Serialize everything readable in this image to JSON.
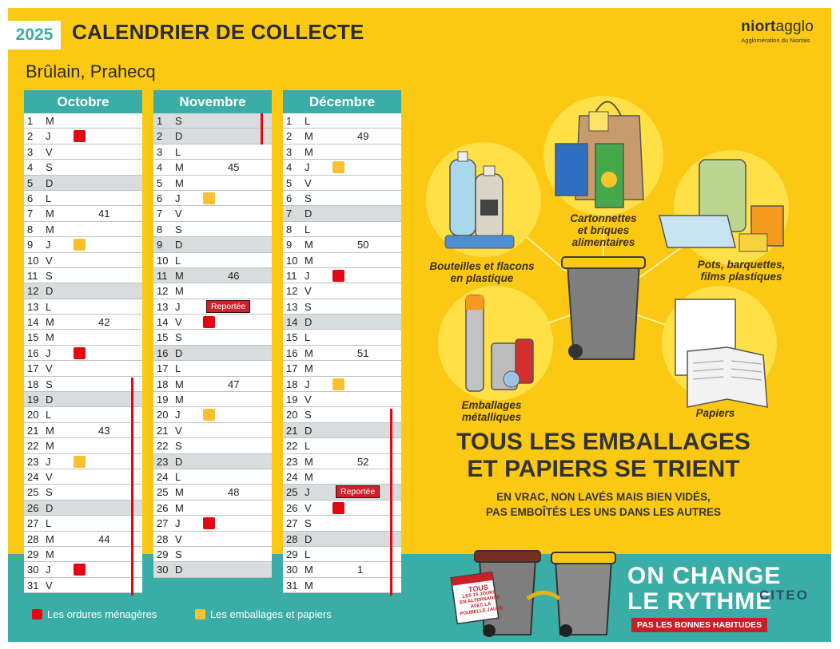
{
  "header": {
    "year": "2025",
    "title": "CALENDRIER DE COLLECTE",
    "place": "Brûlain, Prahecq",
    "brand_name": "niort",
    "brand_name_2": "agglo",
    "brand_sub": "Agglomération du Niortais"
  },
  "months": [
    {
      "name": "Octobre",
      "days": [
        {
          "n": "1",
          "l": "M"
        },
        {
          "n": "2",
          "l": "J",
          "c": "red"
        },
        {
          "n": "3",
          "l": "V"
        },
        {
          "n": "4",
          "l": "S"
        },
        {
          "n": "5",
          "l": "D",
          "we": true
        },
        {
          "n": "6",
          "l": "L"
        },
        {
          "n": "7",
          "l": "M",
          "wk": "41"
        },
        {
          "n": "8",
          "l": "M"
        },
        {
          "n": "9",
          "l": "J",
          "c": "yellow"
        },
        {
          "n": "10",
          "l": "V"
        },
        {
          "n": "11",
          "l": "S"
        },
        {
          "n": "12",
          "l": "D",
          "we": true
        },
        {
          "n": "13",
          "l": "L"
        },
        {
          "n": "14",
          "l": "M",
          "wk": "42"
        },
        {
          "n": "15",
          "l": "M"
        },
        {
          "n": "16",
          "l": "J",
          "c": "red"
        },
        {
          "n": "17",
          "l": "V"
        },
        {
          "n": "18",
          "l": "S"
        },
        {
          "n": "19",
          "l": "D",
          "we": true
        },
        {
          "n": "20",
          "l": "L"
        },
        {
          "n": "21",
          "l": "M",
          "wk": "43"
        },
        {
          "n": "22",
          "l": "M"
        },
        {
          "n": "23",
          "l": "J",
          "c": "yellow"
        },
        {
          "n": "24",
          "l": "V"
        },
        {
          "n": "25",
          "l": "S"
        },
        {
          "n": "26",
          "l": "D",
          "we": true
        },
        {
          "n": "27",
          "l": "L"
        },
        {
          "n": "28",
          "l": "M",
          "wk": "44"
        },
        {
          "n": "29",
          "l": "M"
        },
        {
          "n": "30",
          "l": "J",
          "c": "red"
        },
        {
          "n": "31",
          "l": "V"
        }
      ]
    },
    {
      "name": "Novembre",
      "days": [
        {
          "n": "1",
          "l": "S",
          "we": true
        },
        {
          "n": "2",
          "l": "D",
          "we": true
        },
        {
          "n": "3",
          "l": "L"
        },
        {
          "n": "4",
          "l": "M",
          "wk": "45"
        },
        {
          "n": "5",
          "l": "M"
        },
        {
          "n": "6",
          "l": "J",
          "c": "yellow"
        },
        {
          "n": "7",
          "l": "V"
        },
        {
          "n": "8",
          "l": "S"
        },
        {
          "n": "9",
          "l": "D",
          "we": true
        },
        {
          "n": "10",
          "l": "L"
        },
        {
          "n": "11",
          "l": "M",
          "wk": "46",
          "we": true
        },
        {
          "n": "12",
          "l": "M"
        },
        {
          "n": "13",
          "l": "J",
          "rep": "Reportée"
        },
        {
          "n": "14",
          "l": "V",
          "c": "red"
        },
        {
          "n": "15",
          "l": "S"
        },
        {
          "n": "16",
          "l": "D",
          "we": true
        },
        {
          "n": "17",
          "l": "L"
        },
        {
          "n": "18",
          "l": "M",
          "wk": "47"
        },
        {
          "n": "19",
          "l": "M"
        },
        {
          "n": "20",
          "l": "J",
          "c": "yellow"
        },
        {
          "n": "21",
          "l": "V"
        },
        {
          "n": "22",
          "l": "S"
        },
        {
          "n": "23",
          "l": "D",
          "we": true
        },
        {
          "n": "24",
          "l": "L"
        },
        {
          "n": "25",
          "l": "M",
          "wk": "48"
        },
        {
          "n": "26",
          "l": "M"
        },
        {
          "n": "27",
          "l": "J",
          "c": "red"
        },
        {
          "n": "28",
          "l": "V"
        },
        {
          "n": "29",
          "l": "S"
        },
        {
          "n": "30",
          "l": "D",
          "we": true
        }
      ]
    },
    {
      "name": "Décembre",
      "days": [
        {
          "n": "1",
          "l": "L"
        },
        {
          "n": "2",
          "l": "M",
          "wk": "49"
        },
        {
          "n": "3",
          "l": "M"
        },
        {
          "n": "4",
          "l": "J",
          "c": "yellow"
        },
        {
          "n": "5",
          "l": "V"
        },
        {
          "n": "6",
          "l": "S"
        },
        {
          "n": "7",
          "l": "D",
          "we": true
        },
        {
          "n": "8",
          "l": "L"
        },
        {
          "n": "9",
          "l": "M",
          "wk": "50"
        },
        {
          "n": "10",
          "l": "M"
        },
        {
          "n": "11",
          "l": "J",
          "c": "red"
        },
        {
          "n": "12",
          "l": "V"
        },
        {
          "n": "13",
          "l": "S"
        },
        {
          "n": "14",
          "l": "D",
          "we": true
        },
        {
          "n": "15",
          "l": "L"
        },
        {
          "n": "16",
          "l": "M",
          "wk": "51"
        },
        {
          "n": "17",
          "l": "M"
        },
        {
          "n": "18",
          "l": "J",
          "c": "yellow"
        },
        {
          "n": "19",
          "l": "V"
        },
        {
          "n": "20",
          "l": "S"
        },
        {
          "n": "21",
          "l": "D",
          "we": true
        },
        {
          "n": "22",
          "l": "L"
        },
        {
          "n": "23",
          "l": "M",
          "wk": "52"
        },
        {
          "n": "24",
          "l": "M"
        },
        {
          "n": "25",
          "l": "J",
          "rep": "Reportée",
          "we": true
        },
        {
          "n": "26",
          "l": "V",
          "c": "red"
        },
        {
          "n": "27",
          "l": "S"
        },
        {
          "n": "28",
          "l": "D",
          "we": true
        },
        {
          "n": "29",
          "l": "L"
        },
        {
          "n": "30",
          "l": "M",
          "wk": "1"
        },
        {
          "n": "31",
          "l": "M"
        }
      ]
    }
  ],
  "legend": {
    "ordures": "Les ordures ménagères",
    "emballages": "Les emballages et papiers"
  },
  "colors": {
    "teal": "#3aaea6",
    "yellow_bg": "#fbc814",
    "red": "#e30613",
    "yellow_square": "#fbc02d"
  },
  "categories": {
    "bouteilles": [
      "Bouteilles et flacons",
      "en plastique"
    ],
    "cartonnettes": [
      "Cartonnettes",
      "et briques",
      "alimentaires"
    ],
    "pots": [
      "Pots, barquettes,",
      "films plastiques"
    ],
    "metal": [
      "Emballages",
      "métalliques"
    ],
    "papiers": [
      "Papiers"
    ]
  },
  "slogan": {
    "line1": "TOUS LES EMBALLAGES",
    "line2": "ET PAPIERS SE TRIENT"
  },
  "subline": {
    "line1": "EN VRAC, NON LAVÉS MAIS BIEN VIDÉS,",
    "line2": "PAS EMBOÎTÉS LES UNS DANS LES AUTRES"
  },
  "campaign": {
    "line1": "ON CHANGE",
    "line2": "LE RYTHME",
    "tag": "PAS LES BONNES HABITUDES",
    "note": [
      "COLLECTE",
      "TOUS",
      "LES 15 JOURS",
      "EN ALTERNANCE",
      "AVEC LA",
      "POUBELLE JAUNE"
    ],
    "partner": "CITEO"
  }
}
